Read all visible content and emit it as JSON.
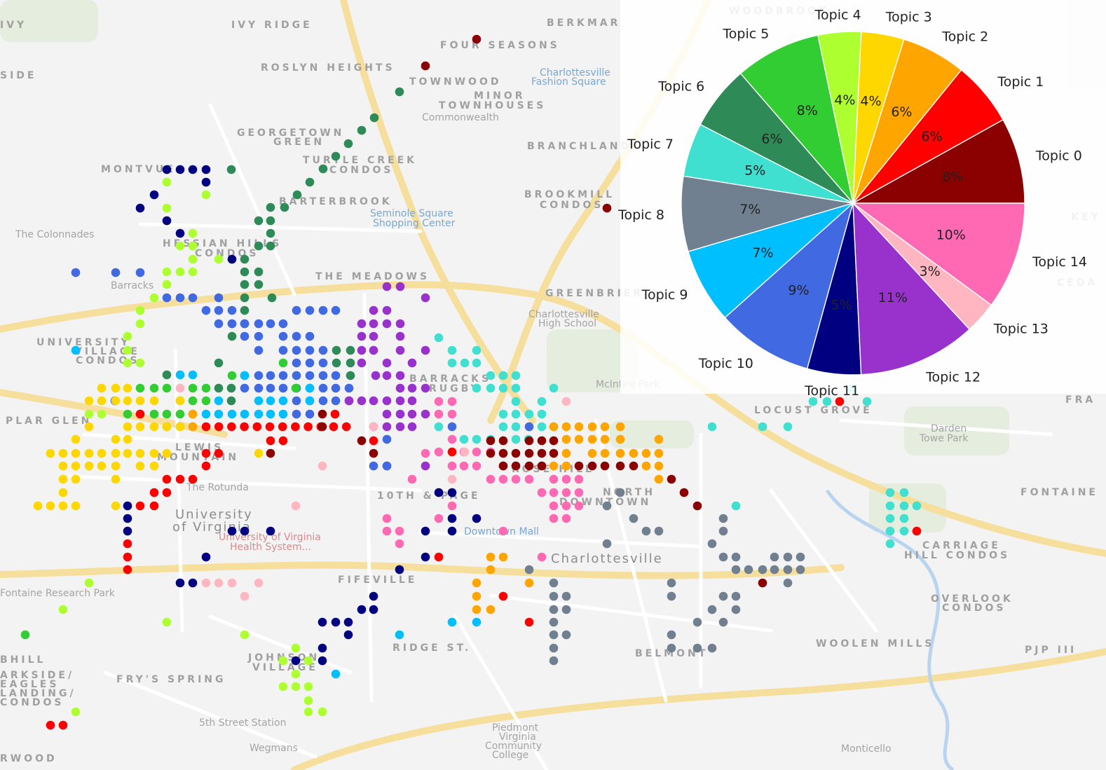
{
  "map": {
    "places": [
      {
        "text": "IVY RIDGE",
        "kind": "place"
      },
      {
        "text": "IVY",
        "kind": "place"
      },
      {
        "text": "BERKMAR",
        "kind": "place"
      },
      {
        "text": "FOUR SEASONS",
        "kind": "place"
      },
      {
        "text": "ROSLYN HEIGHTS",
        "kind": "place"
      },
      {
        "text": "TOWNWOOD",
        "kind": "place"
      },
      {
        "text": "MINOR",
        "kind": "place"
      },
      {
        "text": "TOWNHOUSES",
        "kind": "place"
      },
      {
        "text": "Commonwealth",
        "kind": "small"
      },
      {
        "text": "GEORGETOWN",
        "kind": "place"
      },
      {
        "text": "GREEN",
        "kind": "place"
      },
      {
        "text": "BRANCHLANDS",
        "kind": "place"
      },
      {
        "text": "TURTLE CREEK",
        "kind": "place"
      },
      {
        "text": "CONDOS",
        "kind": "place"
      },
      {
        "text": "MONTVUE",
        "kind": "place"
      },
      {
        "text": "BARTERBROOK",
        "kind": "place"
      },
      {
        "text": "BROOKMILL",
        "kind": "place"
      },
      {
        "text": "CONDOS",
        "kind": "place"
      },
      {
        "text": "The Colonnades",
        "kind": "small"
      },
      {
        "text": "HESSIAN HILLS",
        "kind": "place"
      },
      {
        "text": "CONDOS",
        "kind": "place"
      },
      {
        "text": "THE MEADOWS",
        "kind": "place"
      },
      {
        "text": "Barracks",
        "kind": "small"
      },
      {
        "text": "GREENBRIER",
        "kind": "place"
      },
      {
        "text": "UNIVERSITY",
        "kind": "place"
      },
      {
        "text": "VILLAGE",
        "kind": "place"
      },
      {
        "text": "CONDOS",
        "kind": "place"
      },
      {
        "text": "BARRACKS",
        "kind": "place"
      },
      {
        "text": "RUGBY",
        "kind": "place"
      },
      {
        "text": "McIntire Park",
        "kind": "small"
      },
      {
        "text": "LOCUST GROVE",
        "kind": "place"
      },
      {
        "text": "PLAR GLEN",
        "kind": "place"
      },
      {
        "text": "LEWIS",
        "kind": "place"
      },
      {
        "text": "MOUNTAIN",
        "kind": "place"
      },
      {
        "text": "Darden",
        "kind": "small"
      },
      {
        "text": "Towe Park",
        "kind": "small"
      },
      {
        "text": "The Rotunda",
        "kind": "small"
      },
      {
        "text": "ROSE HILL",
        "kind": "place"
      },
      {
        "text": "10TH & PAGE",
        "kind": "place"
      },
      {
        "text": "NORTH",
        "kind": "place"
      },
      {
        "text": "DOWNTOWN",
        "kind": "place"
      },
      {
        "text": "FONTAINE",
        "kind": "place"
      },
      {
        "text": "University",
        "kind": "big"
      },
      {
        "text": "of Virginia",
        "kind": "big"
      },
      {
        "text": "Downtown Mall",
        "kind": "poi"
      },
      {
        "text": "CARRIAGE",
        "kind": "place"
      },
      {
        "text": "HILL CONDOS",
        "kind": "place"
      },
      {
        "text": "Charlottesville",
        "kind": "big"
      },
      {
        "text": "FIFEVILLE",
        "kind": "place"
      },
      {
        "text": "Fontaine Research Park",
        "kind": "small"
      },
      {
        "text": "OVERLOOK",
        "kind": "place"
      },
      {
        "text": "CONDOS",
        "kind": "place"
      },
      {
        "text": "RIDGE ST.",
        "kind": "place"
      },
      {
        "text": "BELMONT",
        "kind": "place"
      },
      {
        "text": "WOOLEN MILLS",
        "kind": "place"
      },
      {
        "text": "JOHNSON",
        "kind": "place"
      },
      {
        "text": "VILLAGE",
        "kind": "place"
      },
      {
        "text": "FRY'S SPRING",
        "kind": "place"
      },
      {
        "text": "BHILL",
        "kind": "place"
      },
      {
        "text": "ARKSIDE/",
        "kind": "place"
      },
      {
        "text": "EAGLES",
        "kind": "place"
      },
      {
        "text": "LANDING/",
        "kind": "place"
      },
      {
        "text": "CONDOS",
        "kind": "place"
      },
      {
        "text": "5th Street Station",
        "kind": "small"
      },
      {
        "text": "Wegmans",
        "kind": "small"
      },
      {
        "text": "Piedmont",
        "kind": "small"
      },
      {
        "text": "Virginia",
        "kind": "small"
      },
      {
        "text": "Community",
        "kind": "small"
      },
      {
        "text": "College",
        "kind": "small"
      },
      {
        "text": "Monticello",
        "kind": "small"
      },
      {
        "text": "RWOOD",
        "kind": "place"
      },
      {
        "text": "PJP III",
        "kind": "place"
      },
      {
        "text": "Seminole Square",
        "kind": "poi"
      },
      {
        "text": "Shopping Center",
        "kind": "poi"
      },
      {
        "text": "Charlottesville",
        "kind": "poi"
      },
      {
        "text": "Fashion Square",
        "kind": "poi"
      },
      {
        "text": "Charlottesville",
        "kind": "small"
      },
      {
        "text": "High School",
        "kind": "small"
      },
      {
        "text": "University of Virginia",
        "kind": "red"
      },
      {
        "text": "Health System...",
        "kind": "red"
      },
      {
        "text": "SIDE",
        "kind": "place"
      },
      {
        "text": "WOODBROOK",
        "kind": "place"
      },
      {
        "text": "KEY",
        "kind": "place"
      },
      {
        "text": "CEDA",
        "kind": "place"
      },
      {
        "text": "FRA",
        "kind": "place"
      }
    ],
    "dot_topics": [
      "Topic 0",
      "Topic 1",
      "Topic 2",
      "Topic 3",
      "Topic 4",
      "Topic 5",
      "Topic 6",
      "Topic 7",
      "Topic 8",
      "Topic 9",
      "Topic 10",
      "Topic 11",
      "Topic 12",
      "Topic 13",
      "Topic 14"
    ]
  },
  "chart_data": {
    "type": "pie",
    "title": "",
    "slices": [
      {
        "label": "Topic 0",
        "value": 8,
        "pct_label": "8%",
        "color": "#8B0000"
      },
      {
        "label": "Topic 1",
        "value": 6,
        "pct_label": "6%",
        "color": "#FF0000"
      },
      {
        "label": "Topic 2",
        "value": 6,
        "pct_label": "6%",
        "color": "#FFA500"
      },
      {
        "label": "Topic 3",
        "value": 4,
        "pct_label": "4%",
        "color": "#FFD700"
      },
      {
        "label": "Topic 4",
        "value": 4,
        "pct_label": "4%",
        "color": "#ADFF2F"
      },
      {
        "label": "Topic 5",
        "value": 8,
        "pct_label": "8%",
        "color": "#32CD32"
      },
      {
        "label": "Topic 6",
        "value": 6,
        "pct_label": "6%",
        "color": "#2E8B57"
      },
      {
        "label": "Topic 7",
        "value": 5,
        "pct_label": "5%",
        "color": "#40E0D0"
      },
      {
        "label": "Topic 8",
        "value": 7,
        "pct_label": "7%",
        "color": "#708090"
      },
      {
        "label": "Topic 9",
        "value": 7,
        "pct_label": "7%",
        "color": "#00BFFF"
      },
      {
        "label": "Topic 10",
        "value": 9,
        "pct_label": "9%",
        "color": "#4169E1"
      },
      {
        "label": "Topic 11",
        "value": 5,
        "pct_label": "5%",
        "color": "#000080"
      },
      {
        "label": "Topic 12",
        "value": 11,
        "pct_label": "11%",
        "color": "#9932CC"
      },
      {
        "label": "Topic 13",
        "value": 3,
        "pct_label": "3%",
        "color": "#FFB6C1"
      },
      {
        "label": "Topic 14",
        "value": 10,
        "pct_label": "10%",
        "color": "#FF69B4"
      }
    ],
    "start_angle_deg": 0,
    "direction": "counterclockwise"
  }
}
